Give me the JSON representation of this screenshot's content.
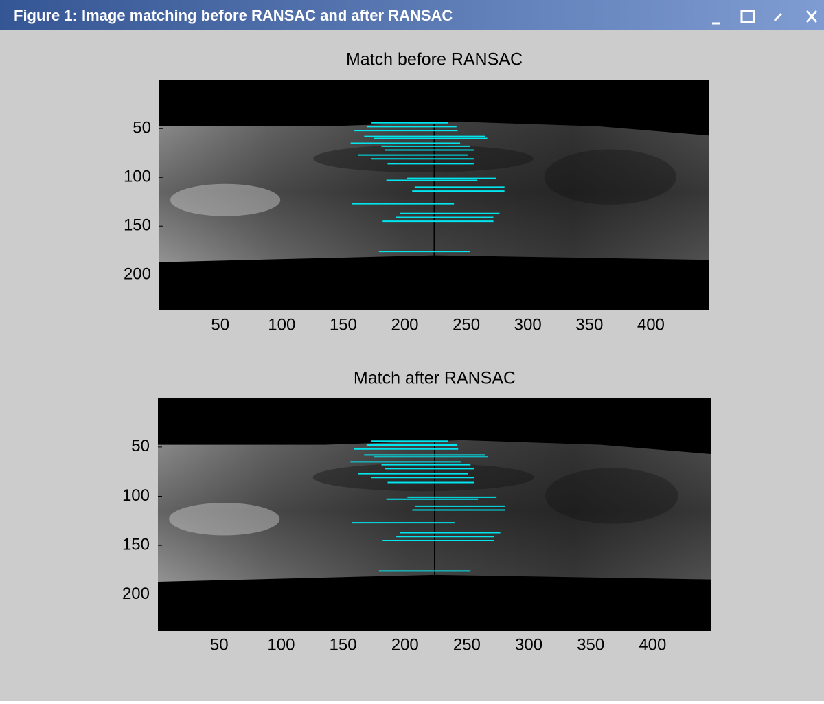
{
  "window": {
    "title": "Figure 1: Image matching before RANSAC and after RANSAC"
  },
  "chart_data": [
    {
      "type": "image-matches",
      "title": "Match before RANSAC",
      "xlim": [
        0.5,
        447.5
      ],
      "ylim": [
        0.5,
        236.5
      ],
      "y_reversed": true,
      "xticks": [
        50,
        100,
        150,
        200,
        250,
        300,
        350,
        400
      ],
      "yticks": [
        50,
        100,
        150,
        200
      ],
      "color": "#00e5ee",
      "lines": {
        "x1": [
          173,
          169,
          159,
          167,
          175,
          156,
          181,
          184,
          162,
          173,
          186,
          202,
          185,
          208,
          206,
          157,
          196,
          193,
          182,
          179
        ],
        "x2": [
          235,
          242,
          243,
          265,
          267,
          245,
          253,
          256,
          251,
          256,
          256,
          274,
          259,
          281,
          281,
          240,
          277,
          272,
          272,
          253
        ],
        "y": [
          44,
          48,
          52,
          58,
          60,
          65,
          68,
          72,
          77,
          81,
          86,
          101,
          103,
          110,
          114,
          127,
          137,
          141,
          145,
          176
        ]
      }
    },
    {
      "type": "image-matches",
      "title": "Match after RANSAC",
      "xlim": [
        0.5,
        447.5
      ],
      "ylim": [
        0.5,
        236.5
      ],
      "y_reversed": true,
      "xticks": [
        50,
        100,
        150,
        200,
        250,
        300,
        350,
        400
      ],
      "yticks": [
        50,
        100,
        150,
        200
      ],
      "color": "#00e5ee",
      "lines": {
        "x1": [
          173,
          169,
          159,
          167,
          175,
          156,
          181,
          184,
          162,
          173,
          186,
          202,
          185,
          208,
          206,
          157,
          196,
          193,
          182,
          179
        ],
        "x2": [
          235,
          242,
          243,
          265,
          267,
          245,
          253,
          256,
          251,
          256,
          256,
          274,
          259,
          281,
          281,
          240,
          277,
          272,
          272,
          253
        ],
        "y": [
          44,
          48,
          52,
          58,
          60,
          65,
          68,
          72,
          77,
          81,
          86,
          101,
          103,
          110,
          114,
          127,
          137,
          141,
          145,
          176
        ]
      }
    }
  ]
}
